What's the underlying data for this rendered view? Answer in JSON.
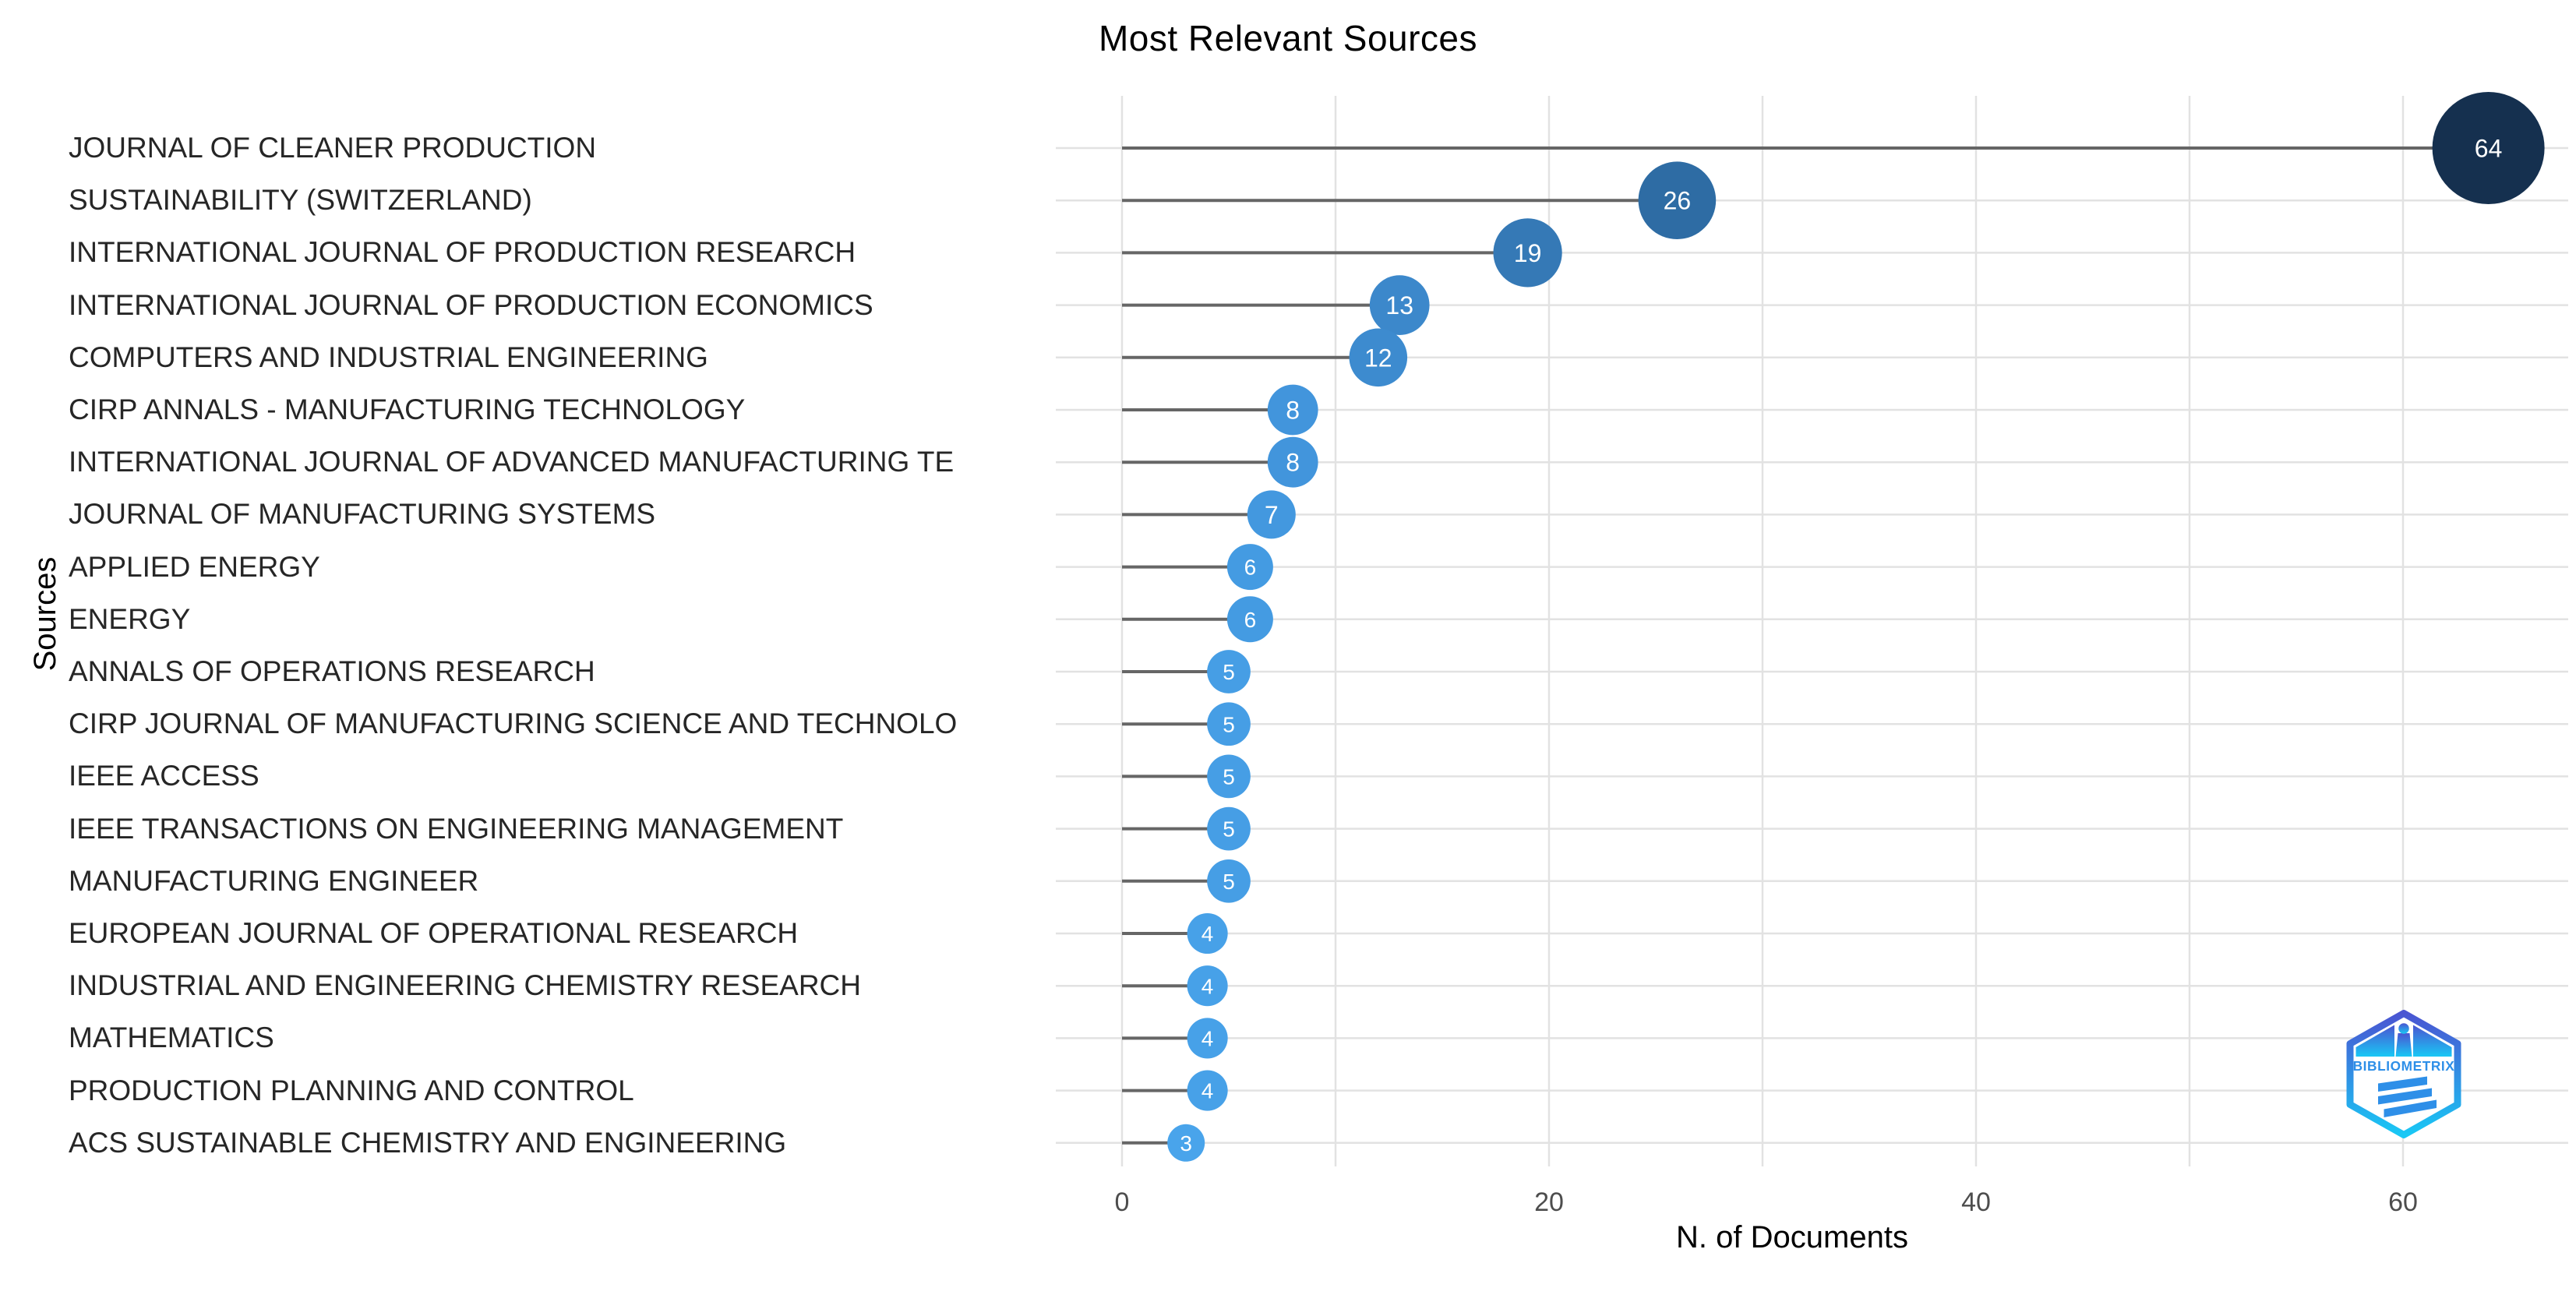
{
  "page": {
    "background": "#FFFFFF"
  },
  "chart_data": {
    "type": "bar",
    "variant": "horizontal-lollipop",
    "title": "Most Relevant Sources",
    "xlabel": "N. of Documents",
    "ylabel": "Sources",
    "categories": [
      "JOURNAL OF CLEANER PRODUCTION",
      "SUSTAINABILITY (SWITZERLAND)",
      "INTERNATIONAL JOURNAL OF PRODUCTION RESEARCH",
      "INTERNATIONAL JOURNAL OF PRODUCTION ECONOMICS",
      "COMPUTERS AND INDUSTRIAL ENGINEERING",
      "CIRP ANNALS - MANUFACTURING TECHNOLOGY",
      "INTERNATIONAL JOURNAL OF ADVANCED MANUFACTURING TE",
      "JOURNAL OF MANUFACTURING SYSTEMS",
      "APPLIED ENERGY",
      "ENERGY",
      "ANNALS OF OPERATIONS RESEARCH",
      "CIRP JOURNAL OF MANUFACTURING SCIENCE AND TECHNOLO",
      "IEEE ACCESS",
      "IEEE TRANSACTIONS ON ENGINEERING MANAGEMENT",
      "MANUFACTURING ENGINEER",
      "EUROPEAN JOURNAL OF OPERATIONAL RESEARCH",
      "INDUSTRIAL AND ENGINEERING CHEMISTRY RESEARCH",
      "MATHEMATICS",
      "PRODUCTION PLANNING AND CONTROL",
      "ACS SUSTAINABLE CHEMISTRY AND ENGINEERING"
    ],
    "values": [
      64,
      26,
      19,
      13,
      12,
      8,
      8,
      7,
      6,
      6,
      5,
      5,
      5,
      5,
      5,
      4,
      4,
      4,
      4,
      3
    ],
    "point_colors": [
      "#15304F",
      "#2E6CA4",
      "#3579B6",
      "#3C88CB",
      "#3D8BCF",
      "#4295DC",
      "#4295DC",
      "#4398DF",
      "#449BE2",
      "#449BE2",
      "#469EE5",
      "#469EE5",
      "#469EE5",
      "#469EE5",
      "#469EE5",
      "#47A1E8",
      "#47A1E8",
      "#47A1E8",
      "#47A1E8",
      "#49A4EB"
    ],
    "xlim": [
      0,
      68
    ],
    "xticks": [
      0,
      20,
      40,
      60
    ],
    "grid": true,
    "legend": false,
    "stem_color": "#666666",
    "grid_color": "#E2E2E2",
    "value_label_color": "#FFFFFF",
    "axis_tick_color": "#4D4D4D"
  },
  "logo": {
    "label": "BIBLIOMETRIX",
    "gradient_top": "#4A55D2",
    "gradient_bottom": "#19C8F5",
    "inner_blue": "#2E8FE8"
  }
}
